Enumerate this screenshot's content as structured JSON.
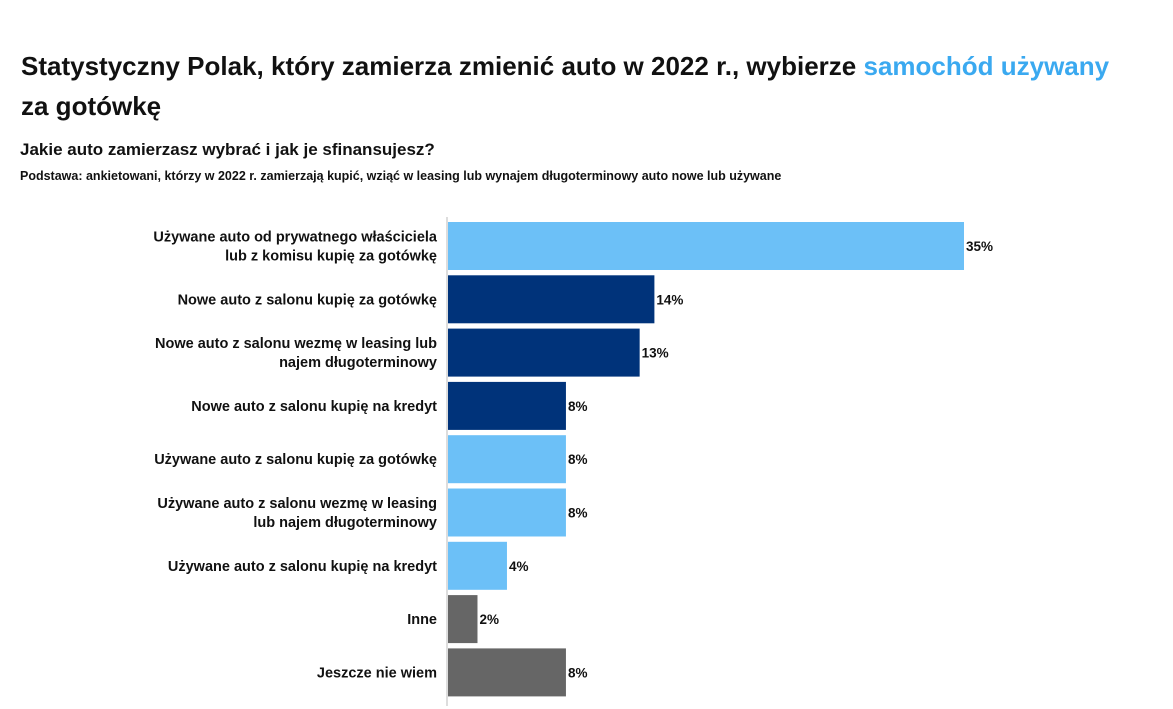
{
  "header": {
    "title_part1": "Statystyczny Polak, który zamierza zmienić auto w 2022 r., wybierze ",
    "title_highlight": "samochód używany",
    "title_part2": " za gotówkę",
    "subtitle": "Jakie auto zamierzasz wybrać i jak je sfinansujesz?",
    "base": "Podstawa: ankietowani, którzy w 2022 r. zamierzają kupić, wziąć w leasing lub wynajem długoterminowy auto nowe lub używane"
  },
  "colors": {
    "highlight": "#3aa9f0",
    "light_blue": "#6cc0f7",
    "dark_blue": "#00337a",
    "gray": "#666666"
  },
  "chart_data": {
    "type": "bar",
    "orientation": "horizontal",
    "categories": [
      "Używane auto od prywatnego właściciela lub z komisu kupię za gotówkę",
      "Nowe auto z salonu kupię za gotówkę",
      "Nowe auto z salonu wezmę w leasing lub najem długoterminowy",
      "Nowe auto z salonu kupię na kredyt",
      "Używane auto z salonu kupię za gotówkę",
      "Używane auto z salonu wezmę w leasing lub najem długoterminowy",
      "Używane auto z salonu kupię na kredyt",
      "Inne",
      "Jeszcze nie wiem"
    ],
    "label_lines": [
      [
        "Używane auto od prywatnego właściciela",
        "lub z komisu kupię za gotówkę"
      ],
      [
        "Nowe auto z salonu kupię za gotówkę"
      ],
      [
        "Nowe auto z salonu wezmę w leasing lub",
        "najem długoterminowy"
      ],
      [
        "Nowe auto z salonu kupię na kredyt"
      ],
      [
        "Używane auto z salonu kupię za gotówkę"
      ],
      [
        "Używane auto z salonu wezmę w leasing",
        "lub najem długoterminowy"
      ],
      [
        "Używane auto z salonu kupię na kredyt"
      ],
      [
        "Inne"
      ],
      [
        "Jeszcze nie wiem"
      ]
    ],
    "values": [
      35,
      14,
      13,
      8,
      8,
      8,
      4,
      2,
      8
    ],
    "value_labels": [
      "35%",
      "14%",
      "13%",
      "8%",
      "8%",
      "8%",
      "4%",
      "2%",
      "8%"
    ],
    "bar_colors": [
      "light_blue",
      "dark_blue",
      "dark_blue",
      "dark_blue",
      "light_blue",
      "light_blue",
      "light_blue",
      "gray",
      "gray"
    ],
    "xlim": [
      0,
      35
    ],
    "grid": false,
    "legend": false
  }
}
